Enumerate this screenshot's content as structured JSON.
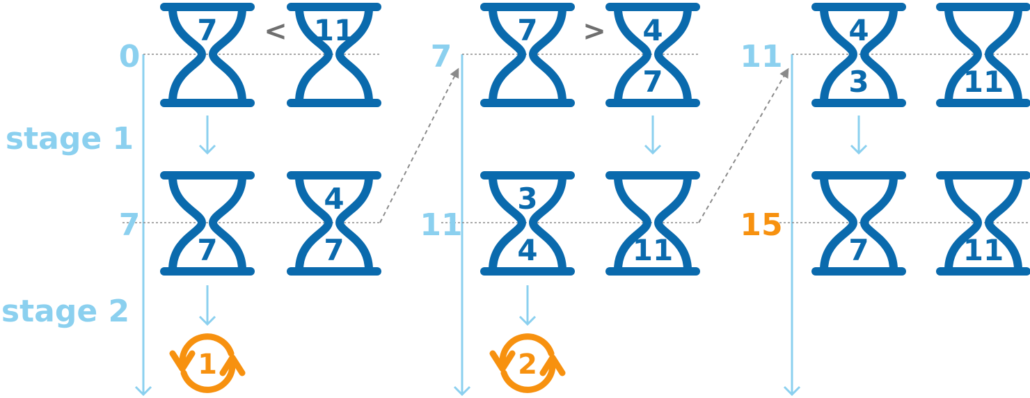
{
  "colors": {
    "glass": "#0a6aad",
    "axis": "#8bd0ef",
    "label": "#8bd0ef",
    "highlight": "#f7910f",
    "compare": "#6f6f6f",
    "guide": "#8a8a8a"
  },
  "stage_labels": [
    "stage 1",
    "stage 2"
  ],
  "columns": [
    {
      "time_top": "0",
      "time_bottom": "7",
      "time_bottom_highlight": false,
      "compare_symbol": "<",
      "top_pair": [
        {
          "top": "7",
          "bottom": ""
        },
        {
          "top": "11",
          "bottom": ""
        }
      ],
      "bottom_pair": [
        {
          "top": "",
          "bottom": "7"
        },
        {
          "top": "4",
          "bottom": "7"
        }
      ],
      "flip_label": "1"
    },
    {
      "time_top": "7",
      "time_bottom": "11",
      "time_bottom_highlight": false,
      "compare_symbol": ">",
      "top_pair": [
        {
          "top": "7",
          "bottom": ""
        },
        {
          "top": "4",
          "bottom": "7"
        }
      ],
      "bottom_pair": [
        {
          "top": "3",
          "bottom": "4"
        },
        {
          "top": "",
          "bottom": "11"
        }
      ],
      "flip_label": "2"
    },
    {
      "time_top": "11",
      "time_bottom": "15",
      "time_bottom_highlight": true,
      "compare_symbol": "",
      "top_pair": [
        {
          "top": "4",
          "bottom": "3"
        },
        {
          "top": "",
          "bottom": "11"
        }
      ],
      "bottom_pair": [
        {
          "top": "",
          "bottom": "7"
        },
        {
          "top": "",
          "bottom": "11"
        }
      ],
      "flip_label": ""
    }
  ]
}
